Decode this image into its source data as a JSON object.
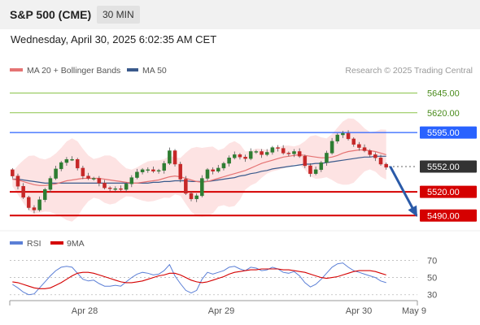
{
  "header": {
    "title": "S&P 500 (CME)",
    "timeframe": "30 MIN",
    "datetime": "Wednesday, April 30, 2025 6:02:35 AM CET"
  },
  "colors": {
    "candle_up": "#2e7d32",
    "candle_down": "#c62828",
    "ma20": "#e57373",
    "bollinger_fill": "#fddede",
    "ma50": "#3a5a8c",
    "resistance": "#8bc34a",
    "pivot": "#2962ff",
    "support": "#d50000",
    "current": "#333333",
    "arrow": "#2a5aa8",
    "rsi": "#5b7fd6",
    "rsi_ma": "#d50000"
  },
  "chart_data": [
    {
      "type": "candlestick",
      "legend": [
        "MA 20 + Bollinger Bands",
        "MA 50"
      ],
      "watermark": "Research © 2025 Trading Central",
      "x_ticks": [
        "Apr 28",
        "Apr 29",
        "Apr 30",
        "May 9"
      ],
      "levels": [
        {
          "value": 5645.0,
          "label": "5645.00",
          "kind": "resistance"
        },
        {
          "value": 5620.0,
          "label": "5620.00",
          "kind": "resistance"
        },
        {
          "value": 5595.0,
          "label": "5595.00",
          "kind": "pivot"
        },
        {
          "value": 5552.0,
          "label": "5552.00",
          "kind": "current"
        },
        {
          "value": 5520.0,
          "label": "5520.00",
          "kind": "support"
        },
        {
          "value": 5490.0,
          "label": "5490.00",
          "kind": "support"
        }
      ],
      "ylim": [
        5480,
        5665
      ],
      "bar_count": 80,
      "closes": [
        5540,
        5527,
        5513,
        5500,
        5497,
        5510,
        5523,
        5537,
        5549,
        5557,
        5561,
        5561,
        5550,
        5540,
        5537,
        5537,
        5531,
        5525,
        5524,
        5524,
        5523,
        5530,
        5538,
        5545,
        5548,
        5548,
        5546,
        5547,
        5556,
        5572,
        5555,
        5536,
        5518,
        5511,
        5515,
        5537,
        5548,
        5546,
        5550,
        5556,
        5563,
        5567,
        5564,
        5562,
        5571,
        5571,
        5567,
        5570,
        5576,
        5575,
        5569,
        5568,
        5571,
        5565,
        5553,
        5543,
        5548,
        5557,
        5569,
        5584,
        5592,
        5594,
        5587,
        5580,
        5576,
        5572,
        5567,
        5563,
        5555,
        5551
      ],
      "opens": [
        5548,
        5540,
        5527,
        5513,
        5500,
        5497,
        5510,
        5523,
        5537,
        5549,
        5557,
        5561,
        5561,
        5550,
        5540,
        5537,
        5537,
        5531,
        5525,
        5524,
        5524,
        5523,
        5530,
        5538,
        5545,
        5548,
        5548,
        5546,
        5547,
        5556,
        5572,
        5555,
        5536,
        5518,
        5511,
        5515,
        5537,
        5548,
        5546,
        5550,
        5556,
        5563,
        5567,
        5564,
        5562,
        5571,
        5571,
        5567,
        5570,
        5576,
        5575,
        5569,
        5568,
        5571,
        5565,
        5553,
        5543,
        5548,
        5557,
        5569,
        5584,
        5592,
        5594,
        5587,
        5580,
        5576,
        5572,
        5567,
        5563,
        5555
      ],
      "ma20": [
        5536,
        5535,
        5533,
        5531,
        5529,
        5528,
        5528,
        5529,
        5530,
        5532,
        5534,
        5535,
        5536,
        5537,
        5537,
        5537,
        5537,
        5536,
        5535,
        5534,
        5533,
        5532,
        5531,
        5531,
        5532,
        5533,
        5534,
        5535,
        5537,
        5539,
        5540,
        5539,
        5537,
        5535,
        5533,
        5532,
        5533,
        5535,
        5537,
        5539,
        5541,
        5543,
        5545,
        5547,
        5550,
        5553,
        5556,
        5558,
        5560,
        5562,
        5564,
        5565,
        5566,
        5567,
        5566,
        5565,
        5564,
        5563,
        5563,
        5564,
        5566,
        5569,
        5571,
        5572,
        5573,
        5573,
        5572,
        5571,
        5569,
        5567
      ],
      "ma50": [
        5536,
        5536,
        5535,
        5534,
        5533,
        5532,
        5531,
        5531,
        5531,
        5531,
        5531,
        5531,
        5531,
        5531,
        5531,
        5531,
        5531,
        5531,
        5531,
        5531,
        5531,
        5531,
        5531,
        5531,
        5531,
        5531,
        5532,
        5532,
        5533,
        5533,
        5534,
        5534,
        5534,
        5533,
        5533,
        5533,
        5533,
        5534,
        5535,
        5536,
        5537,
        5538,
        5540,
        5541,
        5543,
        5544,
        5546,
        5547,
        5549,
        5550,
        5551,
        5552,
        5553,
        5554,
        5555,
        5555,
        5556,
        5556,
        5557,
        5558,
        5559,
        5560,
        5561,
        5562,
        5563,
        5564,
        5564,
        5565,
        5565,
        5565
      ],
      "forecast_arrow": {
        "from": 5552,
        "to": 5490
      }
    },
    {
      "type": "line",
      "legend": [
        "RSI",
        "9MA"
      ],
      "ylim": [
        25,
        78
      ],
      "y_ticks": [
        "70",
        "50",
        "30"
      ],
      "rsi": [
        42,
        38,
        33,
        30,
        31,
        38,
        45,
        52,
        58,
        62,
        63,
        62,
        55,
        48,
        46,
        47,
        43,
        40,
        40,
        41,
        40,
        45,
        50,
        54,
        56,
        55,
        53,
        54,
        58,
        65,
        52,
        43,
        35,
        32,
        35,
        48,
        56,
        54,
        56,
        58,
        62,
        63,
        60,
        58,
        62,
        61,
        58,
        59,
        62,
        60,
        56,
        55,
        57,
        52,
        44,
        39,
        42,
        48,
        55,
        62,
        66,
        67,
        62,
        58,
        56,
        54,
        52,
        50,
        46,
        44
      ],
      "rsi_ma": [
        45,
        44,
        42,
        40,
        38,
        37,
        37,
        38,
        41,
        44,
        48,
        52,
        55,
        56,
        56,
        55,
        53,
        51,
        49,
        47,
        45,
        44,
        44,
        45,
        46,
        48,
        50,
        52,
        53,
        55,
        55,
        53,
        50,
        47,
        45,
        44,
        45,
        47,
        49,
        51,
        54,
        56,
        57,
        58,
        59,
        59,
        60,
        60,
        60,
        60,
        59,
        59,
        58,
        57,
        56,
        54,
        52,
        50,
        49,
        50,
        51,
        53,
        55,
        57,
        58,
        58,
        58,
        57,
        55,
        53
      ]
    }
  ]
}
